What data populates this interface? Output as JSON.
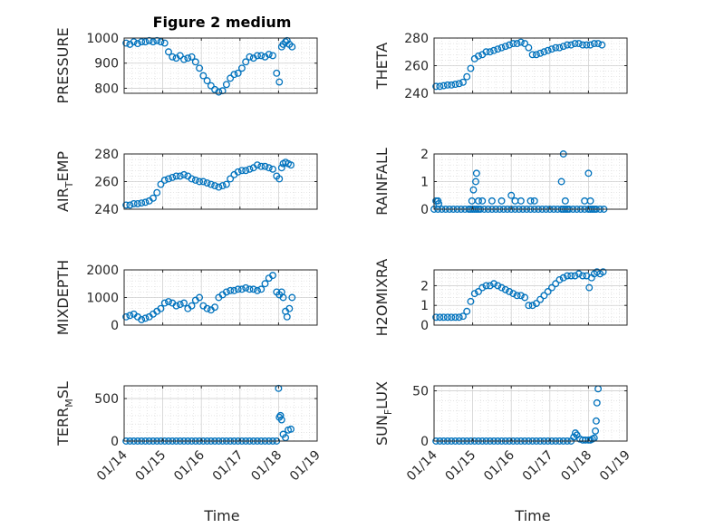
{
  "figure": {
    "title": "Figure 2 medium",
    "xlabel": "Time"
  },
  "chart_data": [
    {
      "type": "scatter",
      "panel": "pressure",
      "title": "Figure 2 medium",
      "ylabel": "PRESSURE",
      "ylim": [
        780,
        1000
      ],
      "yticks": [
        800,
        900,
        1000
      ],
      "xlim": [
        0,
        5
      ],
      "xticks": [
        "01/14",
        "01/15",
        "01/16",
        "01/17",
        "01/18",
        "01/19"
      ],
      "show_xticklabels": false,
      "grid": true,
      "marker_color": "#0072BD",
      "series": [
        {
          "x": [
            0.05,
            0.15,
            0.25,
            0.35,
            0.45,
            0.55,
            0.65,
            0.75,
            0.85,
            0.95,
            1.05,
            1.15,
            1.25,
            1.35,
            1.45,
            1.55,
            1.65,
            1.75,
            1.85,
            1.95,
            2.05,
            2.15,
            2.25,
            2.35,
            2.45,
            2.55,
            2.65,
            2.75,
            2.85,
            2.95,
            3.05,
            3.15,
            3.25,
            3.35,
            3.45,
            3.55,
            3.65,
            3.75,
            3.85,
            3.95,
            4.02,
            4.08,
            4.12,
            4.18,
            4.22,
            4.28,
            4.35
          ],
          "y": [
            980,
            975,
            985,
            978,
            985,
            985,
            990,
            985,
            990,
            985,
            980,
            945,
            925,
            920,
            930,
            915,
            920,
            925,
            905,
            880,
            850,
            830,
            810,
            795,
            785,
            790,
            815,
            840,
            855,
            860,
            880,
            905,
            925,
            920,
            930,
            930,
            925,
            935,
            930,
            860,
            825,
            965,
            975,
            985,
            990,
            975,
            965
          ]
        }
      ]
    },
    {
      "type": "scatter",
      "panel": "theta",
      "ylabel": "THETA",
      "ylim": [
        240,
        280
      ],
      "yticks": [
        240,
        260,
        280
      ],
      "xlim": [
        0,
        5
      ],
      "xticks": [
        "01/14",
        "01/15",
        "01/16",
        "01/17",
        "01/18",
        "01/19"
      ],
      "show_xticklabels": false,
      "grid": true,
      "marker_color": "#0072BD",
      "series": [
        {
          "x": [
            0.05,
            0.15,
            0.25,
            0.35,
            0.45,
            0.55,
            0.65,
            0.75,
            0.85,
            0.95,
            1.05,
            1.15,
            1.25,
            1.35,
            1.45,
            1.55,
            1.65,
            1.75,
            1.85,
            1.95,
            2.05,
            2.15,
            2.25,
            2.35,
            2.45,
            2.55,
            2.65,
            2.75,
            2.85,
            2.95,
            3.05,
            3.15,
            3.25,
            3.35,
            3.45,
            3.55,
            3.65,
            3.75,
            3.85,
            3.95,
            4.05,
            4.15,
            4.25,
            4.35
          ],
          "y": [
            245,
            245,
            245.5,
            246,
            246,
            246.5,
            247,
            248,
            252,
            258,
            265,
            267,
            268,
            270,
            270,
            271,
            272,
            273,
            274,
            275,
            276,
            276,
            277,
            276,
            273,
            268,
            268,
            269,
            270,
            271,
            272,
            273,
            273,
            274,
            275,
            275,
            276,
            276,
            275,
            275,
            275,
            276,
            276,
            275
          ]
        }
      ]
    },
    {
      "type": "scatter",
      "panel": "air_temp",
      "ylabel_main": "AIR",
      "ylabel_sub": "T",
      "ylabel_rest": "EMP",
      "ylim": [
        240,
        280
      ],
      "yticks": [
        240,
        260,
        280
      ],
      "xlim": [
        0,
        5
      ],
      "xticks": [
        "01/14",
        "01/15",
        "01/16",
        "01/17",
        "01/18",
        "01/19"
      ],
      "show_xticklabels": false,
      "grid": true,
      "marker_color": "#0072BD",
      "series": [
        {
          "x": [
            0.05,
            0.15,
            0.25,
            0.35,
            0.45,
            0.55,
            0.65,
            0.75,
            0.85,
            0.95,
            1.05,
            1.15,
            1.25,
            1.35,
            1.45,
            1.55,
            1.65,
            1.75,
            1.85,
            1.95,
            2.05,
            2.15,
            2.25,
            2.35,
            2.45,
            2.55,
            2.65,
            2.75,
            2.85,
            2.95,
            3.05,
            3.15,
            3.25,
            3.35,
            3.45,
            3.55,
            3.65,
            3.75,
            3.85,
            3.95,
            4.02,
            4.08,
            4.12,
            4.18,
            4.25,
            4.32
          ],
          "y": [
            243,
            243,
            244,
            244,
            244.5,
            245,
            246,
            248,
            252,
            258,
            261,
            262,
            263,
            264,
            264,
            265,
            264,
            262,
            261,
            260,
            260,
            259,
            258,
            257,
            256,
            257,
            258,
            262,
            265,
            267,
            268,
            268,
            269,
            270,
            272,
            271,
            271,
            270,
            269,
            264,
            262,
            270,
            273,
            274,
            273,
            272
          ]
        }
      ]
    },
    {
      "type": "scatter",
      "panel": "rainfall",
      "ylabel": "RAINFALL",
      "ylim": [
        0,
        2
      ],
      "yticks": [
        0,
        1,
        2
      ],
      "xlim": [
        0,
        5
      ],
      "xticks": [
        "01/14",
        "01/15",
        "01/16",
        "01/17",
        "01/18",
        "01/19"
      ],
      "show_xticklabels": false,
      "grid": true,
      "marker_color": "#0072BD",
      "series": [
        {
          "x": [
            0.0,
            0.1,
            0.2,
            0.3,
            0.4,
            0.5,
            0.6,
            0.7,
            0.8,
            0.9,
            0.95,
            1.0,
            1.05,
            1.1,
            1.15,
            1.2,
            1.3,
            1.4,
            1.5,
            1.6,
            1.7,
            1.8,
            1.9,
            2.0,
            2.1,
            2.2,
            2.3,
            2.4,
            2.5,
            2.6,
            2.7,
            2.8,
            2.9,
            3.0,
            3.1,
            3.2,
            3.3,
            3.35,
            3.4,
            3.45,
            3.5,
            3.6,
            3.7,
            3.8,
            3.9,
            4.0,
            4.05,
            4.1,
            4.15,
            4.2,
            4.3,
            4.4,
            0.05,
            0.1,
            0.12,
            0.98,
            1.02,
            1.08,
            1.1,
            1.15,
            1.25,
            1.5,
            1.75,
            2.0,
            2.1,
            2.25,
            2.5,
            2.6,
            3.3,
            3.35,
            3.4,
            3.9,
            4.0,
            4.05
          ],
          "y": [
            0,
            0,
            0,
            0,
            0,
            0,
            0,
            0,
            0,
            0,
            0,
            0,
            0,
            0,
            0,
            0,
            0,
            0,
            0,
            0,
            0,
            0,
            0,
            0,
            0,
            0,
            0,
            0,
            0,
            0,
            0,
            0,
            0,
            0,
            0,
            0,
            0,
            0,
            0,
            0,
            0,
            0,
            0,
            0,
            0,
            0,
            0,
            0,
            0,
            0,
            0,
            0,
            0.3,
            0.3,
            0.2,
            0.3,
            0.7,
            1.0,
            1.3,
            0.3,
            0.3,
            0.3,
            0.3,
            0.5,
            0.3,
            0.3,
            0.3,
            0.3,
            1.0,
            2.0,
            0.3,
            0.3,
            1.3,
            0.3
          ]
        }
      ]
    },
    {
      "type": "scatter",
      "panel": "mixdepth",
      "ylabel": "MIXDEPTH",
      "ylim": [
        0,
        2000
      ],
      "yticks": [
        0,
        1000,
        2000
      ],
      "xlim": [
        0,
        5
      ],
      "xticks": [
        "01/14",
        "01/15",
        "01/16",
        "01/17",
        "01/18",
        "01/19"
      ],
      "show_xticklabels": false,
      "grid": true,
      "marker_color": "#0072BD",
      "series": [
        {
          "x": [
            0.05,
            0.15,
            0.25,
            0.35,
            0.45,
            0.55,
            0.65,
            0.75,
            0.85,
            0.95,
            1.05,
            1.15,
            1.25,
            1.35,
            1.45,
            1.55,
            1.65,
            1.75,
            1.85,
            1.95,
            2.05,
            2.15,
            2.25,
            2.35,
            2.45,
            2.55,
            2.65,
            2.75,
            2.85,
            2.95,
            3.05,
            3.15,
            3.25,
            3.35,
            3.45,
            3.55,
            3.65,
            3.75,
            3.85,
            3.95,
            4.02,
            4.08,
            4.12,
            4.18,
            4.22,
            4.28,
            4.35
          ],
          "y": [
            300,
            350,
            400,
            300,
            200,
            250,
            300,
            400,
            500,
            600,
            800,
            850,
            800,
            700,
            750,
            800,
            600,
            700,
            900,
            1000,
            700,
            600,
            550,
            650,
            1000,
            1100,
            1200,
            1250,
            1250,
            1300,
            1300,
            1350,
            1300,
            1300,
            1250,
            1300,
            1500,
            1700,
            1800,
            1200,
            1100,
            1200,
            1000,
            500,
            300,
            600,
            1000
          ]
        }
      ]
    },
    {
      "type": "scatter",
      "panel": "h2omixra",
      "ylabel": "H2OMIXRA",
      "ylim": [
        0,
        2.8
      ],
      "yticks": [
        0,
        1,
        2
      ],
      "xlim": [
        0,
        5
      ],
      "xticks": [
        "01/14",
        "01/15",
        "01/16",
        "01/17",
        "01/18",
        "01/19"
      ],
      "show_xticklabels": false,
      "grid": true,
      "marker_color": "#0072BD",
      "series": [
        {
          "x": [
            0.05,
            0.15,
            0.25,
            0.35,
            0.45,
            0.55,
            0.65,
            0.75,
            0.85,
            0.95,
            1.05,
            1.15,
            1.25,
            1.35,
            1.45,
            1.55,
            1.65,
            1.75,
            1.85,
            1.95,
            2.05,
            2.15,
            2.25,
            2.35,
            2.45,
            2.55,
            2.65,
            2.75,
            2.85,
            2.95,
            3.05,
            3.15,
            3.25,
            3.35,
            3.45,
            3.55,
            3.65,
            3.75,
            3.85,
            3.95,
            4.02,
            4.08,
            4.15,
            4.22,
            4.3,
            4.38
          ],
          "y": [
            0.4,
            0.4,
            0.4,
            0.4,
            0.4,
            0.4,
            0.4,
            0.45,
            0.7,
            1.2,
            1.6,
            1.7,
            1.9,
            2.0,
            2.0,
            2.1,
            2.0,
            1.9,
            1.8,
            1.7,
            1.6,
            1.5,
            1.5,
            1.4,
            1.0,
            1.0,
            1.1,
            1.3,
            1.5,
            1.7,
            1.9,
            2.1,
            2.3,
            2.4,
            2.5,
            2.5,
            2.5,
            2.6,
            2.5,
            2.5,
            1.9,
            2.4,
            2.6,
            2.7,
            2.6,
            2.7
          ]
        }
      ]
    },
    {
      "type": "scatter",
      "panel": "terr_msl",
      "ylabel_main": "TERR",
      "ylabel_sub": "M",
      "ylabel_rest": "SL",
      "ylim": [
        0,
        650
      ],
      "yticks": [
        0,
        500
      ],
      "xlim": [
        0,
        5
      ],
      "xticks": [
        "01/14",
        "01/15",
        "01/16",
        "01/17",
        "01/18",
        "01/19"
      ],
      "show_xticklabels": true,
      "grid": true,
      "marker_color": "#0072BD",
      "series": [
        {
          "x": [
            0.05,
            0.15,
            0.25,
            0.35,
            0.45,
            0.55,
            0.65,
            0.75,
            0.85,
            0.95,
            1.05,
            1.15,
            1.25,
            1.35,
            1.45,
            1.55,
            1.65,
            1.75,
            1.85,
            1.95,
            2.05,
            2.15,
            2.25,
            2.35,
            2.45,
            2.55,
            2.65,
            2.75,
            2.85,
            2.95,
            3.05,
            3.15,
            3.25,
            3.35,
            3.45,
            3.55,
            3.65,
            3.75,
            3.85,
            3.95,
            4.0,
            4.02,
            4.05,
            4.08,
            4.12,
            4.18,
            4.25,
            4.32
          ],
          "y": [
            0,
            0,
            0,
            0,
            0,
            0,
            0,
            0,
            0,
            0,
            0,
            0,
            0,
            0,
            0,
            0,
            0,
            0,
            0,
            0,
            0,
            0,
            0,
            0,
            0,
            0,
            0,
            0,
            0,
            0,
            0,
            0,
            0,
            0,
            0,
            0,
            0,
            0,
            0,
            0,
            620,
            280,
            300,
            250,
            80,
            40,
            130,
            140
          ]
        }
      ]
    },
    {
      "type": "scatter",
      "panel": "sun_flux",
      "ylabel_main": "SUN",
      "ylabel_sub": "F",
      "ylabel_rest": "LUX",
      "ylim": [
        0,
        55
      ],
      "yticks": [
        0,
        50
      ],
      "xlim": [
        0,
        5
      ],
      "xticks": [
        "01/14",
        "01/15",
        "01/16",
        "01/17",
        "01/18",
        "01/19"
      ],
      "show_xticklabels": true,
      "grid": true,
      "marker_color": "#0072BD",
      "series": [
        {
          "x": [
            0.05,
            0.15,
            0.25,
            0.35,
            0.45,
            0.55,
            0.65,
            0.75,
            0.85,
            0.95,
            1.05,
            1.15,
            1.25,
            1.35,
            1.45,
            1.55,
            1.65,
            1.75,
            1.85,
            1.95,
            2.05,
            2.15,
            2.25,
            2.35,
            2.45,
            2.55,
            2.65,
            2.75,
            2.85,
            2.95,
            3.05,
            3.15,
            3.25,
            3.35,
            3.45,
            3.55,
            3.62,
            3.66,
            3.7,
            3.78,
            3.85,
            3.92,
            4.0,
            4.05,
            4.1,
            4.15,
            4.18,
            4.2,
            4.22,
            4.25
          ],
          "y": [
            0,
            0,
            0,
            0,
            0,
            0,
            0,
            0,
            0,
            0,
            0,
            0,
            0,
            0,
            0,
            0,
            0,
            0,
            0,
            0,
            0,
            0,
            0,
            0,
            0,
            0,
            0,
            0,
            0,
            0,
            0,
            0,
            0,
            0,
            0,
            0,
            4,
            8,
            6,
            2,
            1,
            1,
            1,
            1,
            2,
            3,
            10,
            20,
            38,
            52
          ]
        }
      ]
    }
  ]
}
